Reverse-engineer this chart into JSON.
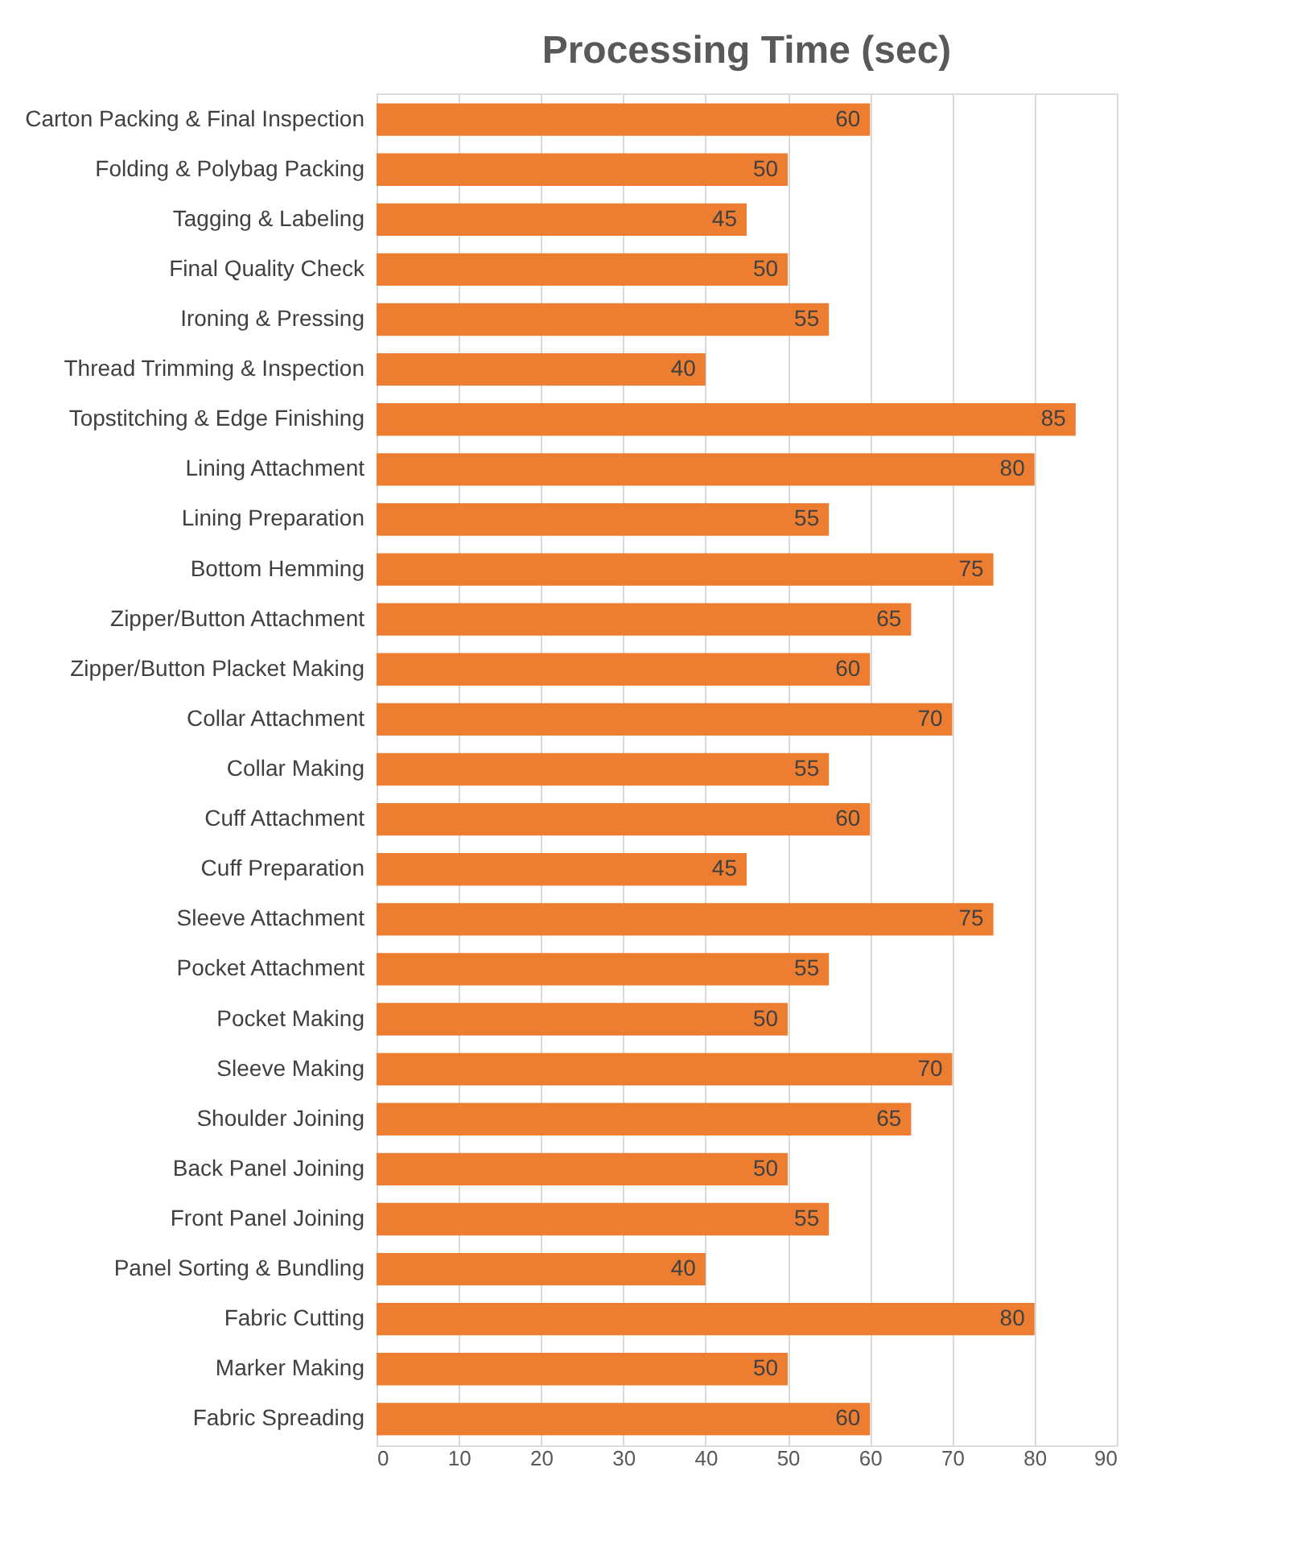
{
  "chart_data": {
    "type": "bar",
    "orientation": "horizontal",
    "title": "Processing Time (sec)",
    "categories": [
      "Carton Packing & Final Inspection",
      "Folding & Polybag Packing",
      "Tagging & Labeling",
      "Final Quality Check",
      "Ironing & Pressing",
      "Thread Trimming & Inspection",
      "Topstitching & Edge Finishing",
      "Lining Attachment",
      "Lining Preparation",
      "Bottom Hemming",
      "Zipper/Button Attachment",
      "Zipper/Button Placket Making",
      "Collar Attachment",
      "Collar Making",
      "Cuff Attachment",
      "Cuff Preparation",
      "Sleeve Attachment",
      "Pocket Attachment",
      "Pocket Making",
      "Sleeve Making",
      "Shoulder Joining",
      "Back Panel Joining",
      "Front Panel Joining",
      "Panel Sorting & Bundling",
      "Fabric Cutting",
      "Marker Making",
      "Fabric Spreading"
    ],
    "values": [
      60,
      50,
      45,
      50,
      55,
      40,
      85,
      80,
      55,
      75,
      65,
      60,
      70,
      55,
      60,
      45,
      75,
      55,
      50,
      70,
      65,
      50,
      55,
      40,
      80,
      50,
      60
    ],
    "color": "#ed7d31",
    "xlim": [
      0,
      90
    ],
    "xticks": [
      0,
      10,
      20,
      30,
      40,
      50,
      60,
      70,
      80,
      90
    ],
    "grid": "x",
    "data_labels": true
  }
}
